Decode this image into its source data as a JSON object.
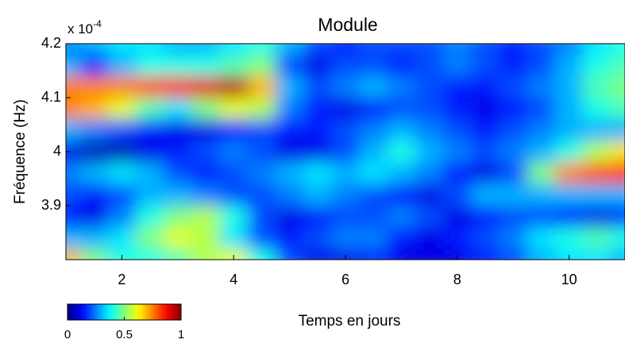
{
  "chart_data": {
    "type": "heatmap",
    "title": "Module",
    "xlabel": "Temps en jours",
    "ylabel": "Fréquence (Hz)",
    "y_exponent": {
      "base": "x 10",
      "power": "-4"
    },
    "x": [
      1,
      1.5,
      2,
      2.5,
      3,
      3.5,
      4,
      4.5,
      5,
      5.5,
      6,
      6.5,
      7,
      7.5,
      8,
      8.5,
      9,
      9.5,
      10,
      10.5,
      11
    ],
    "y": [
      4.2,
      4.16,
      4.12,
      4.08,
      4.04,
      4.0,
      3.96,
      3.92,
      3.88,
      3.84,
      3.8
    ],
    "z": [
      [
        0.25,
        0.3,
        0.35,
        0.35,
        0.3,
        0.3,
        0.35,
        0.4,
        0.3,
        0.2,
        0.15,
        0.2,
        0.2,
        0.2,
        0.25,
        0.2,
        0.15,
        0.2,
        0.25,
        0.35,
        0.4
      ],
      [
        0.3,
        0.15,
        0.3,
        0.4,
        0.4,
        0.4,
        0.45,
        0.5,
        0.2,
        0.1,
        0.2,
        0.2,
        0.15,
        0.2,
        0.25,
        0.2,
        0.15,
        0.2,
        0.3,
        0.4,
        0.45
      ],
      [
        0.75,
        0.75,
        0.75,
        0.8,
        0.85,
        0.9,
        0.95,
        0.7,
        0.3,
        0.2,
        0.25,
        0.3,
        0.25,
        0.2,
        0.15,
        0.15,
        0.2,
        0.25,
        0.3,
        0.45,
        0.5
      ],
      [
        0.75,
        0.7,
        0.6,
        0.45,
        0.35,
        0.5,
        0.6,
        0.55,
        0.25,
        0.15,
        0.1,
        0.15,
        0.2,
        0.2,
        0.15,
        0.1,
        0.15,
        0.2,
        0.3,
        0.4,
        0.45
      ],
      [
        0.3,
        0.25,
        0.2,
        0.15,
        0.1,
        0.1,
        0.15,
        0.2,
        0.15,
        0.15,
        0.2,
        0.25,
        0.3,
        0.25,
        0.2,
        0.15,
        0.2,
        0.25,
        0.3,
        0.3,
        0.3
      ],
      [
        0.1,
        0.05,
        0.05,
        0.1,
        0.15,
        0.2,
        0.25,
        0.2,
        0.1,
        0.1,
        0.2,
        0.3,
        0.4,
        0.3,
        0.25,
        0.2,
        0.25,
        0.3,
        0.4,
        0.55,
        0.65
      ],
      [
        0.25,
        0.3,
        0.35,
        0.3,
        0.2,
        0.15,
        0.2,
        0.25,
        0.3,
        0.35,
        0.3,
        0.35,
        0.3,
        0.25,
        0.15,
        0.1,
        0.2,
        0.5,
        0.75,
        0.8,
        0.85
      ],
      [
        0.2,
        0.15,
        0.2,
        0.3,
        0.3,
        0.25,
        0.2,
        0.2,
        0.25,
        0.3,
        0.25,
        0.2,
        0.15,
        0.1,
        0.2,
        0.3,
        0.3,
        0.3,
        0.3,
        0.3,
        0.3
      ],
      [
        0.15,
        0.1,
        0.25,
        0.4,
        0.5,
        0.55,
        0.4,
        0.2,
        0.1,
        0.15,
        0.2,
        0.2,
        0.25,
        0.2,
        0.1,
        0.15,
        0.2,
        0.2,
        0.15,
        0.1,
        0.15
      ],
      [
        0.3,
        0.3,
        0.35,
        0.5,
        0.6,
        0.55,
        0.35,
        0.2,
        0.15,
        0.2,
        0.25,
        0.25,
        0.15,
        0.1,
        0.15,
        0.2,
        0.25,
        0.35,
        0.4,
        0.45,
        0.4
      ],
      [
        0.7,
        0.5,
        0.4,
        0.4,
        0.45,
        0.55,
        0.6,
        0.4,
        0.2,
        0.1,
        0.1,
        0.15,
        0.1,
        0.1,
        0.1,
        0.15,
        0.2,
        0.3,
        0.35,
        0.35,
        0.3
      ]
    ],
    "xlim": [
      1,
      11
    ],
    "xticks": [
      2,
      4,
      6,
      8,
      10
    ],
    "ylim": [
      3.8,
      4.2
    ],
    "yticks": [
      3.9,
      4,
      4.1,
      4.2
    ],
    "colormap": "jet",
    "clim": [
      0,
      1
    ],
    "colorbar_ticks": [
      0,
      0.5,
      1
    ]
  }
}
